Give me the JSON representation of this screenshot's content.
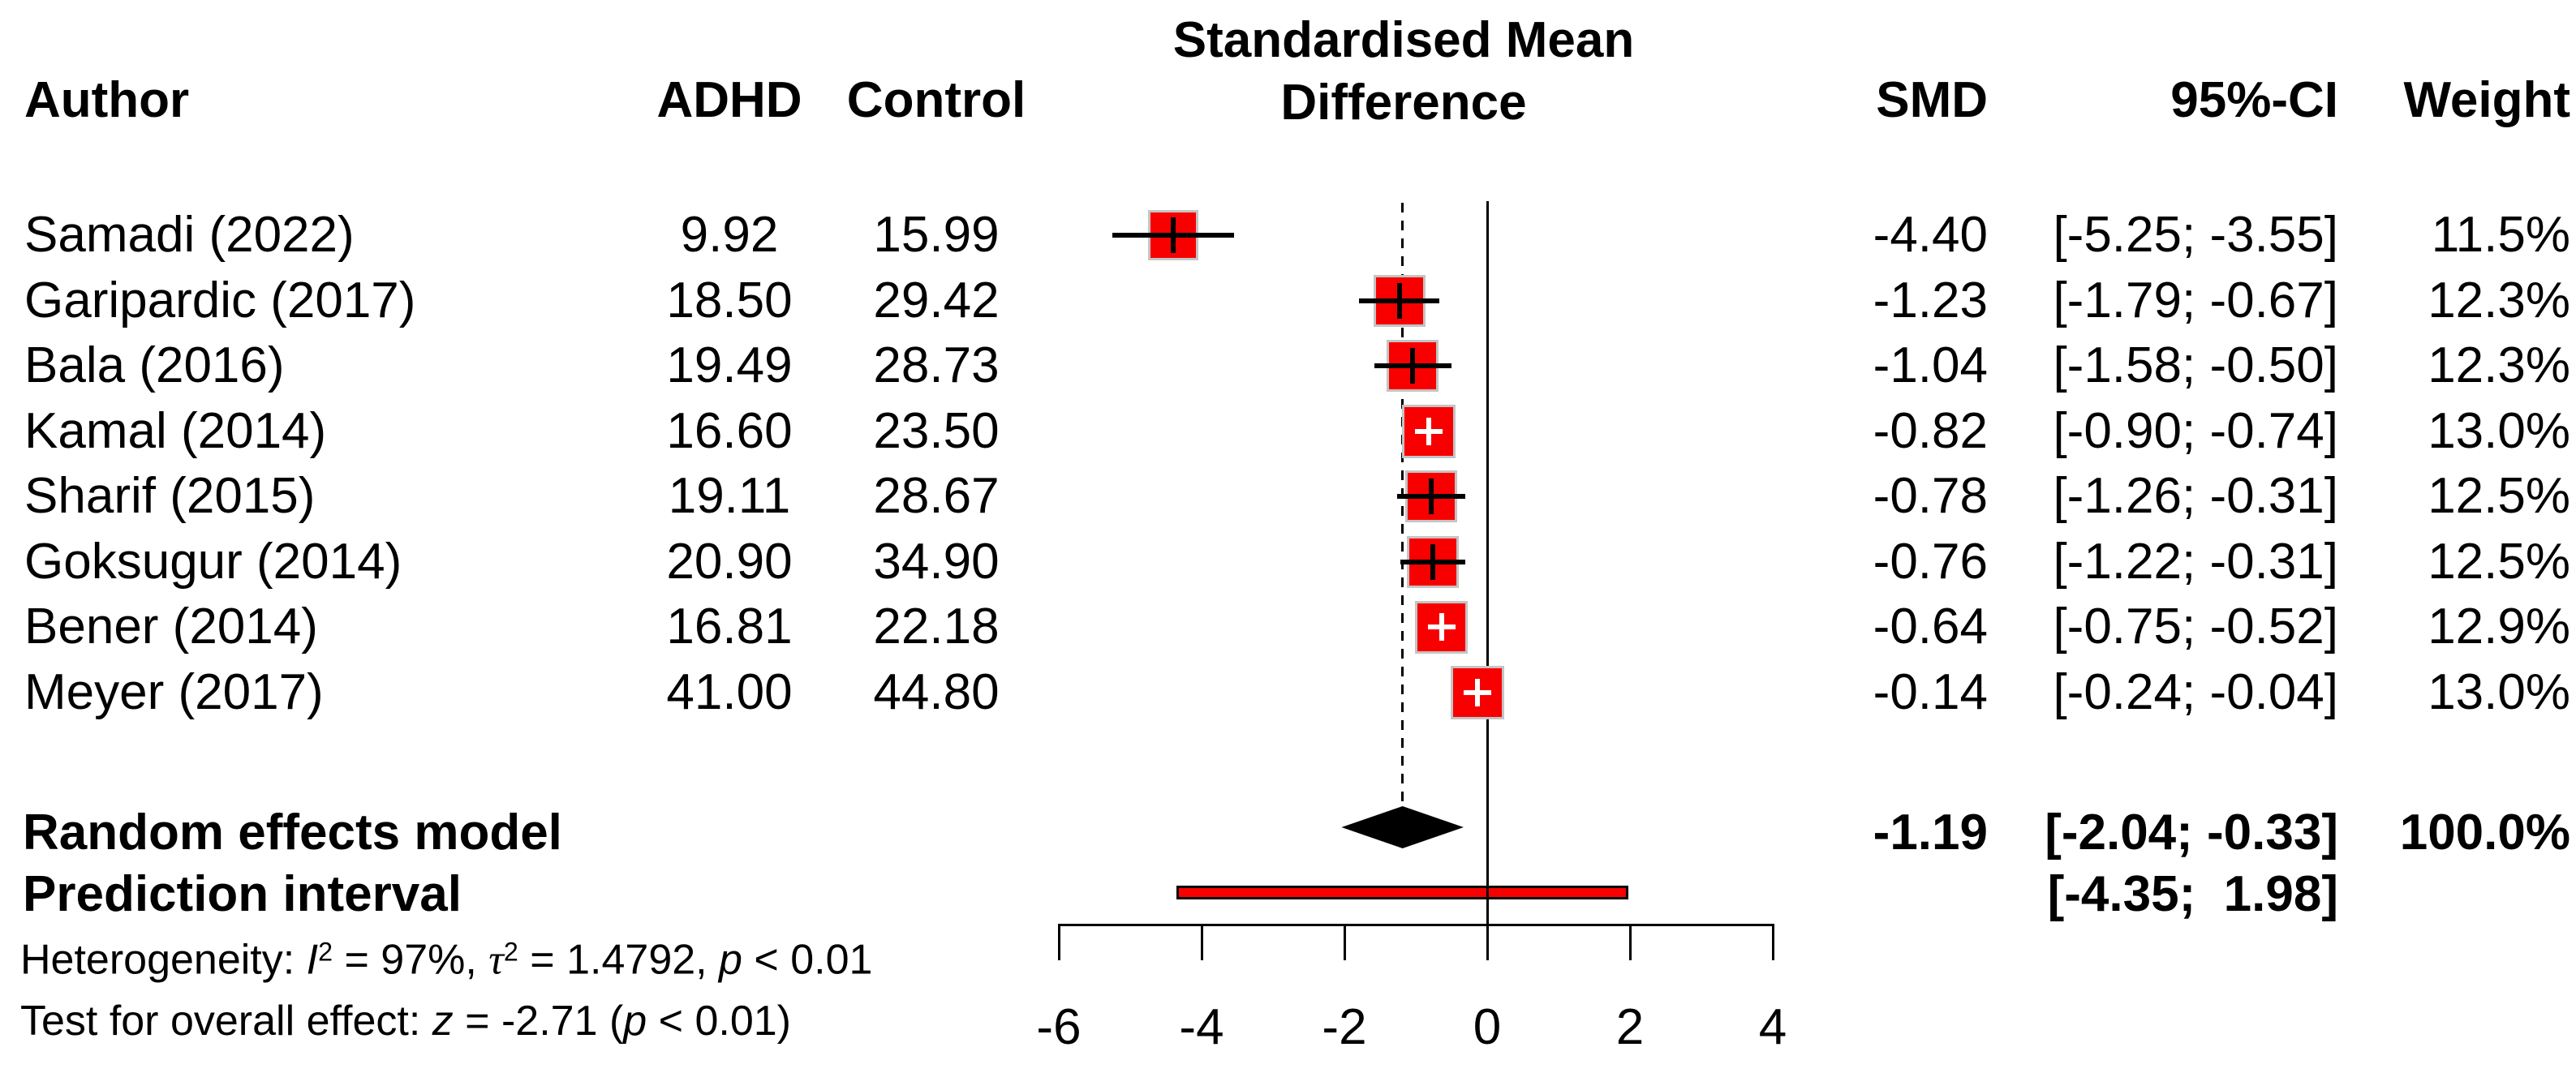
{
  "title": {
    "line1": "Standardised Mean",
    "line2": "Difference"
  },
  "header": {
    "author": "Author",
    "adhd": "ADHD",
    "control": "Control",
    "smd": "SMD",
    "ci": "95%-CI",
    "weight": "Weight"
  },
  "chart_data": {
    "type": "forest",
    "title": "Standardised Mean Difference",
    "x_axis": {
      "ticks": [
        -6,
        -4,
        -2,
        0,
        2,
        4
      ],
      "range": [
        -6,
        4
      ],
      "zero_ref_line": 0,
      "dashed_ref_line": -1.19,
      "grid": false
    },
    "marker_color": "#f80000",
    "marker_border_color": "#c4c4c4",
    "diamond_color": "#000000",
    "studies": [
      {
        "author": "Samadi (2022)",
        "adhd": "9.92",
        "control": "15.99",
        "smd": -4.4,
        "ci_low": -5.25,
        "ci_high": -3.55,
        "weight_pct": 11.5,
        "smd_label": "-4.40",
        "ci_label": "[-5.25; -3.55]",
        "weight_label": "11.5%"
      },
      {
        "author": "Garipardic (2017)",
        "adhd": "18.50",
        "control": "29.42",
        "smd": -1.23,
        "ci_low": -1.79,
        "ci_high": -0.67,
        "weight_pct": 12.3,
        "smd_label": "-1.23",
        "ci_label": "[-1.79; -0.67]",
        "weight_label": "12.3%"
      },
      {
        "author": "Bala (2016)",
        "adhd": "19.49",
        "control": "28.73",
        "smd": -1.04,
        "ci_low": -1.58,
        "ci_high": -0.5,
        "weight_pct": 12.3,
        "smd_label": "-1.04",
        "ci_label": "[-1.58; -0.50]",
        "weight_label": "12.3%"
      },
      {
        "author": "Kamal (2014)",
        "adhd": "16.60",
        "control": "23.50",
        "smd": -0.82,
        "ci_low": -0.9,
        "ci_high": -0.74,
        "weight_pct": 13.0,
        "smd_label": "-0.82",
        "ci_label": "[-0.90; -0.74]",
        "weight_label": "13.0%"
      },
      {
        "author": "Sharif (2015)",
        "adhd": "19.11",
        "control": "28.67",
        "smd": -0.78,
        "ci_low": -1.26,
        "ci_high": -0.31,
        "weight_pct": 12.5,
        "smd_label": "-0.78",
        "ci_label": "[-1.26; -0.31]",
        "weight_label": "12.5%"
      },
      {
        "author": "Goksugur (2014)",
        "adhd": "20.90",
        "control": "34.90",
        "smd": -0.76,
        "ci_low": -1.22,
        "ci_high": -0.31,
        "weight_pct": 12.5,
        "smd_label": "-0.76",
        "ci_label": "[-1.22; -0.31]",
        "weight_label": "12.5%"
      },
      {
        "author": "Bener (2014)",
        "adhd": "16.81",
        "control": "22.18",
        "smd": -0.64,
        "ci_low": -0.75,
        "ci_high": -0.52,
        "weight_pct": 12.9,
        "smd_label": "-0.64",
        "ci_label": "[-0.75; -0.52]",
        "weight_label": "12.9%"
      },
      {
        "author": "Meyer (2017)",
        "adhd": "41.00",
        "control": "44.80",
        "smd": -0.14,
        "ci_low": -0.24,
        "ci_high": -0.04,
        "weight_pct": 13.0,
        "smd_label": "-0.14",
        "ci_label": "[-0.24; -0.04]",
        "weight_label": "13.0%"
      }
    ],
    "random_effects": {
      "label": "Random effects model",
      "smd": -1.19,
      "ci_low": -2.04,
      "ci_high": -0.33,
      "weight_pct": 100.0,
      "smd_label": "-1.19",
      "ci_label": "[-2.04; -0.33]",
      "weight_label": "100.0%"
    },
    "prediction_interval": {
      "label": "Prediction interval",
      "ci_low": -4.35,
      "ci_high": 1.98,
      "ci_label": "[-4.35;  1.98]"
    }
  },
  "footnotes": {
    "het": {
      "prefix": "Heterogeneity: ",
      "I": "I",
      "Isup": "2",
      "seg1": " = 97%, ",
      "tau": "τ",
      "tausup": "2",
      "seg2": " = 1.4792, ",
      "p": "p",
      "seg3": " < 0.01"
    },
    "test": {
      "prefix": "Test for overall effect: ",
      "z": "z",
      "seg1": " = -2.71 (",
      "p": "p",
      "seg2": " < 0.01)"
    }
  }
}
